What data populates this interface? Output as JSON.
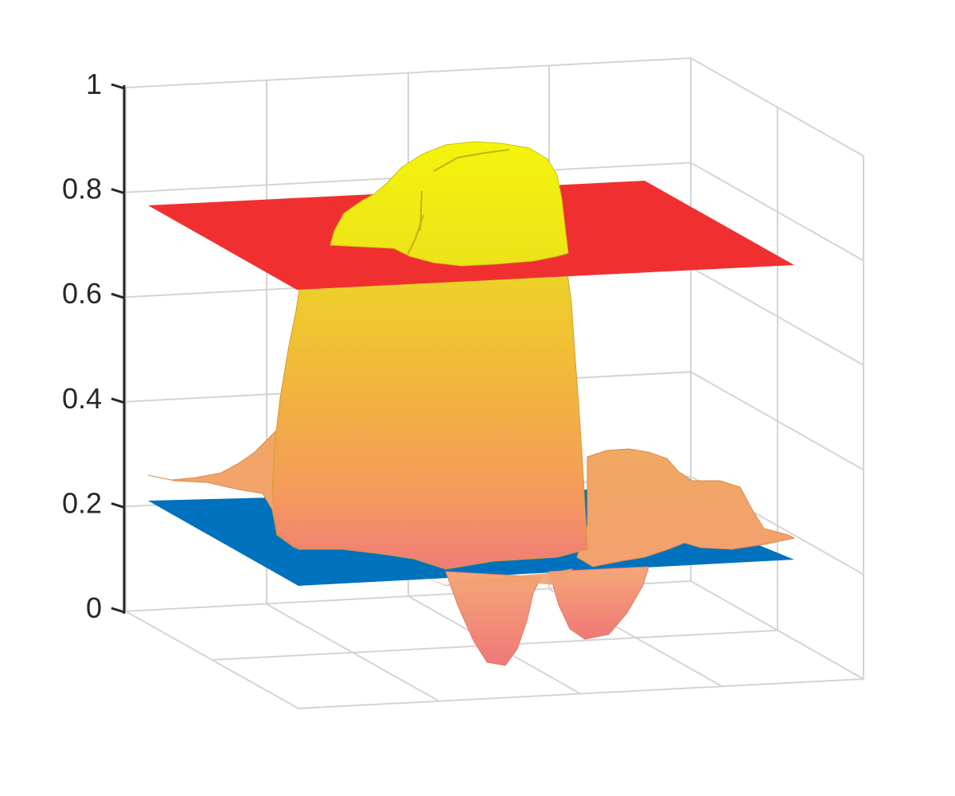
{
  "chart_data": {
    "type": "surface",
    "title": "",
    "xlabel": "",
    "ylabel": "",
    "zlabel": "",
    "zlim": [
      0,
      1
    ],
    "z_ticks": [
      "0",
      "0.2",
      "0.4",
      "0.6",
      "0.8",
      "1"
    ],
    "grid": true,
    "legend": "none",
    "surface": {
      "name": "",
      "colormap": "autumn-like (pink to yellow)",
      "peak_z": 0.89,
      "shoulder_z": 0.25,
      "dip_min_z": -0.12,
      "dip_count": 2
    },
    "planes": [
      {
        "name": "",
        "z": 0.76,
        "color": "#f03030"
      },
      {
        "name": "",
        "z": 0.12,
        "color": "#0072bd"
      }
    ]
  },
  "colors": {
    "upper_plane": "#f03030",
    "lower_plane": "#0072bd",
    "surface_low": "#f07c78",
    "surface_mid": "#f4a54c",
    "surface_high": "#eeee10",
    "grid": "#d4d4d4",
    "axis": "#262626"
  }
}
